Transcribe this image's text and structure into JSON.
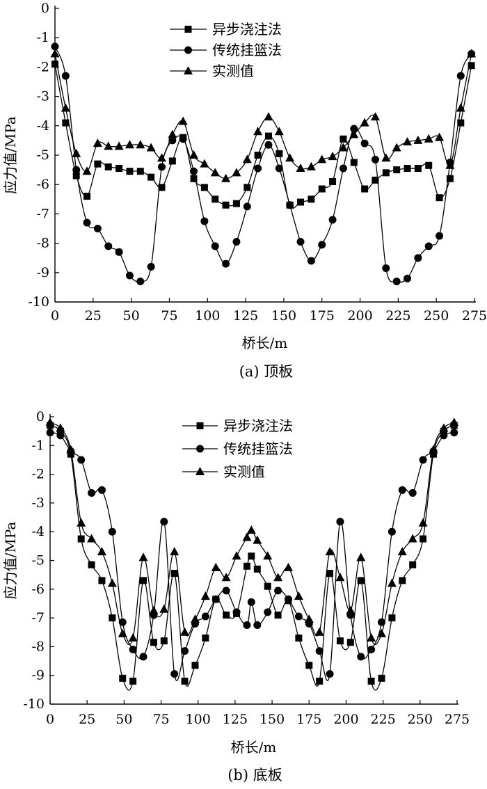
{
  "chart_data": [
    {
      "type": "line",
      "caption": "(a) 顶板",
      "xlabel": "桥长/m",
      "ylabel": "应力值/MPa",
      "xlim": [
        0,
        275
      ],
      "ylim": [
        -10,
        0
      ],
      "xticks": [
        "0",
        "25",
        "50",
        "75",
        "100",
        "125",
        "150",
        "175",
        "200",
        "225",
        "250",
        "275"
      ],
      "yticks": [
        "0",
        "-1",
        "-2",
        "-3",
        "-4",
        "-5",
        "-6",
        "-7",
        "-8",
        "-9",
        "-10"
      ],
      "legend_position": "top-center",
      "series": [
        {
          "name": "异步浇注法",
          "marker": "square",
          "points": [
            [
              0,
              -1.9
            ],
            [
              7,
              -3.9
            ],
            [
              14,
              -5.7
            ],
            [
              21,
              -6.4
            ],
            [
              28,
              -5.3
            ],
            [
              35,
              -5.4
            ],
            [
              42,
              -5.45
            ],
            [
              49,
              -5.55
            ],
            [
              56,
              -5.55
            ],
            [
              63,
              -5.75
            ],
            [
              70,
              -6.1
            ],
            [
              77,
              -5.2
            ],
            [
              84,
              -4.4
            ],
            [
              91,
              -5.8
            ],
            [
              98,
              -6.1
            ],
            [
              105,
              -6.5
            ],
            [
              112,
              -6.7
            ],
            [
              119,
              -6.65
            ],
            [
              126,
              -6.1
            ],
            [
              133,
              -5.0
            ],
            [
              140,
              -4.35
            ],
            [
              147,
              -4.95
            ],
            [
              154,
              -6.7
            ],
            [
              161,
              -6.6
            ],
            [
              168,
              -6.5
            ],
            [
              175,
              -6.15
            ],
            [
              182,
              -5.9
            ],
            [
              189,
              -4.45
            ],
            [
              196,
              -5.25
            ],
            [
              203,
              -6.15
            ],
            [
              210,
              -5.85
            ],
            [
              217,
              -5.6
            ],
            [
              224,
              -5.5
            ],
            [
              231,
              -5.45
            ],
            [
              238,
              -5.45
            ],
            [
              245,
              -5.35
            ],
            [
              252,
              -6.45
            ],
            [
              259,
              -5.8
            ],
            [
              266,
              -3.9
            ],
            [
              273,
              -1.95
            ]
          ]
        },
        {
          "name": "传统挂篮法",
          "marker": "circle",
          "points": [
            [
              0,
              -1.3
            ],
            [
              7,
              -2.3
            ],
            [
              14,
              -5.5
            ],
            [
              21,
              -7.3
            ],
            [
              28,
              -7.5
            ],
            [
              35,
              -8.1
            ],
            [
              42,
              -8.3
            ],
            [
              49,
              -9.1
            ],
            [
              56,
              -9.3
            ],
            [
              63,
              -8.8
            ],
            [
              70,
              -5.4
            ],
            [
              77,
              -4.5
            ],
            [
              84,
              -4.45
            ],
            [
              91,
              -5.55
            ],
            [
              98,
              -7.25
            ],
            [
              105,
              -8.1
            ],
            [
              112,
              -8.7
            ],
            [
              119,
              -7.95
            ],
            [
              126,
              -6.75
            ],
            [
              133,
              -5.45
            ],
            [
              140,
              -4.65
            ],
            [
              147,
              -5.45
            ],
            [
              154,
              -6.7
            ],
            [
              161,
              -7.95
            ],
            [
              168,
              -8.6
            ],
            [
              175,
              -8.05
            ],
            [
              182,
              -7.2
            ],
            [
              189,
              -5.45
            ],
            [
              196,
              -4.1
            ],
            [
              203,
              -4.6
            ],
            [
              210,
              -5.15
            ],
            [
              217,
              -8.85
            ],
            [
              224,
              -9.3
            ],
            [
              231,
              -9.2
            ],
            [
              238,
              -8.5
            ],
            [
              245,
              -8.1
            ],
            [
              252,
              -7.75
            ],
            [
              259,
              -5.25
            ],
            [
              266,
              -2.3
            ],
            [
              273,
              -1.55
            ]
          ]
        },
        {
          "name": "实测值",
          "marker": "triangle",
          "points": [
            [
              0,
              -1.55
            ],
            [
              7,
              -3.4
            ],
            [
              14,
              -4.95
            ],
            [
              21,
              -5.55
            ],
            [
              28,
              -4.6
            ],
            [
              35,
              -4.7
            ],
            [
              42,
              -4.7
            ],
            [
              49,
              -4.65
            ],
            [
              56,
              -4.65
            ],
            [
              63,
              -4.75
            ],
            [
              70,
              -5.1
            ],
            [
              77,
              -4.3
            ],
            [
              84,
              -3.85
            ],
            [
              91,
              -5.0
            ],
            [
              98,
              -5.3
            ],
            [
              105,
              -5.6
            ],
            [
              112,
              -5.8
            ],
            [
              119,
              -5.6
            ],
            [
              126,
              -5.15
            ],
            [
              133,
              -4.2
            ],
            [
              140,
              -3.7
            ],
            [
              147,
              -4.2
            ],
            [
              154,
              -5.1
            ],
            [
              161,
              -5.45
            ],
            [
              168,
              -5.4
            ],
            [
              175,
              -5.15
            ],
            [
              182,
              -5.05
            ],
            [
              189,
              -4.75
            ],
            [
              196,
              -4.3
            ],
            [
              203,
              -3.9
            ],
            [
              210,
              -3.7
            ],
            [
              217,
              -5.1
            ],
            [
              224,
              -4.75
            ],
            [
              231,
              -4.55
            ],
            [
              238,
              -4.5
            ],
            [
              245,
              -4.45
            ],
            [
              252,
              -4.4
            ],
            [
              259,
              -5.35
            ],
            [
              266,
              -3.4
            ],
            [
              273,
              -1.55
            ]
          ]
        }
      ]
    },
    {
      "type": "line",
      "caption": "(b) 底板",
      "xlabel": "桥长/m",
      "ylabel": "应力值/MPa",
      "xlim": [
        0,
        275
      ],
      "ylim": [
        -10,
        0
      ],
      "xticks": [
        "0",
        "25",
        "50",
        "75",
        "100",
        "125",
        "150",
        "175",
        "200",
        "225",
        "250",
        "275"
      ],
      "yticks": [
        "0",
        "-1",
        "-2",
        "-3",
        "-4",
        "-5",
        "-6",
        "-7",
        "-8",
        "-9",
        "-10"
      ],
      "legend_position": "top-center",
      "series": [
        {
          "name": "异步浇注法",
          "marker": "square",
          "points": [
            [
              0,
              -0.3
            ],
            [
              7,
              -0.5
            ],
            [
              14,
              -1.3
            ],
            [
              21,
              -4.25
            ],
            [
              28,
              -5.15
            ],
            [
              35,
              -5.7
            ],
            [
              42,
              -7.0
            ],
            [
              49,
              -9.1
            ],
            [
              56,
              -9.2
            ],
            [
              63,
              -5.7
            ],
            [
              70,
              -7.85
            ],
            [
              77,
              -7.8
            ],
            [
              84,
              -5.45
            ],
            [
              91,
              -9.2
            ],
            [
              98,
              -8.65
            ],
            [
              105,
              -7.7
            ],
            [
              112,
              -6.35
            ],
            [
              119,
              -6.9
            ],
            [
              126,
              -6.85
            ],
            [
              133,
              -5.2
            ],
            [
              136,
              -4.85
            ],
            [
              140,
              -5.3
            ],
            [
              147,
              -5.9
            ],
            [
              154,
              -6.9
            ],
            [
              161,
              -6.4
            ],
            [
              168,
              -7.7
            ],
            [
              175,
              -8.65
            ],
            [
              182,
              -9.2
            ],
            [
              189,
              -5.45
            ],
            [
              196,
              -7.8
            ],
            [
              203,
              -7.85
            ],
            [
              210,
              -5.7
            ],
            [
              217,
              -9.2
            ],
            [
              224,
              -9.1
            ],
            [
              231,
              -7.0
            ],
            [
              238,
              -5.7
            ],
            [
              245,
              -5.15
            ],
            [
              252,
              -4.25
            ],
            [
              259,
              -1.3
            ],
            [
              266,
              -0.5
            ],
            [
              273,
              -0.3
            ]
          ]
        },
        {
          "name": "传统挂篮法",
          "marker": "circle",
          "points": [
            [
              0,
              -0.55
            ],
            [
              7,
              -0.65
            ],
            [
              14,
              -1.2
            ],
            [
              21,
              -1.5
            ],
            [
              28,
              -2.65
            ],
            [
              35,
              -2.55
            ],
            [
              42,
              -4.0
            ],
            [
              49,
              -7.15
            ],
            [
              56,
              -8.1
            ],
            [
              63,
              -8.35
            ],
            [
              70,
              -6.9
            ],
            [
              77,
              -3.65
            ],
            [
              84,
              -8.95
            ],
            [
              91,
              -8.15
            ],
            [
              98,
              -7.2
            ],
            [
              105,
              -6.95
            ],
            [
              112,
              -6.35
            ],
            [
              119,
              -6.05
            ],
            [
              126,
              -6.8
            ],
            [
              133,
              -7.25
            ],
            [
              136,
              -6.45
            ],
            [
              140,
              -7.25
            ],
            [
              147,
              -6.8
            ],
            [
              154,
              -6.05
            ],
            [
              161,
              -6.35
            ],
            [
              168,
              -6.95
            ],
            [
              175,
              -7.2
            ],
            [
              182,
              -8.15
            ],
            [
              189,
              -8.95
            ],
            [
              196,
              -3.65
            ],
            [
              203,
              -6.9
            ],
            [
              210,
              -8.35
            ],
            [
              217,
              -8.1
            ],
            [
              224,
              -7.15
            ],
            [
              231,
              -4.0
            ],
            [
              238,
              -2.55
            ],
            [
              245,
              -2.65
            ],
            [
              252,
              -1.5
            ],
            [
              259,
              -1.2
            ],
            [
              266,
              -0.65
            ],
            [
              273,
              -0.55
            ]
          ]
        },
        {
          "name": "实测值",
          "marker": "triangle",
          "points": [
            [
              0,
              -0.2
            ],
            [
              7,
              -0.4
            ],
            [
              14,
              -1.15
            ],
            [
              21,
              -3.7
            ],
            [
              28,
              -4.25
            ],
            [
              35,
              -4.7
            ],
            [
              42,
              -5.8
            ],
            [
              49,
              -7.55
            ],
            [
              56,
              -7.7
            ],
            [
              63,
              -4.9
            ],
            [
              70,
              -6.75
            ],
            [
              77,
              -6.7
            ],
            [
              84,
              -4.7
            ],
            [
              91,
              -7.5
            ],
            [
              98,
              -7.05
            ],
            [
              105,
              -6.25
            ],
            [
              112,
              -5.25
            ],
            [
              119,
              -5.6
            ],
            [
              126,
              -4.85
            ],
            [
              133,
              -4.2
            ],
            [
              136,
              -3.95
            ],
            [
              140,
              -4.3
            ],
            [
              147,
              -4.85
            ],
            [
              154,
              -5.6
            ],
            [
              161,
              -5.25
            ],
            [
              168,
              -6.25
            ],
            [
              175,
              -7.05
            ],
            [
              182,
              -7.5
            ],
            [
              189,
              -4.7
            ],
            [
              196,
              -5.6
            ],
            [
              203,
              -6.75
            ],
            [
              210,
              -4.9
            ],
            [
              217,
              -7.7
            ],
            [
              224,
              -7.55
            ],
            [
              231,
              -5.8
            ],
            [
              238,
              -4.7
            ],
            [
              245,
              -4.25
            ],
            [
              252,
              -3.7
            ],
            [
              259,
              -1.15
            ],
            [
              266,
              -0.4
            ],
            [
              273,
              -0.2
            ]
          ]
        }
      ]
    }
  ]
}
